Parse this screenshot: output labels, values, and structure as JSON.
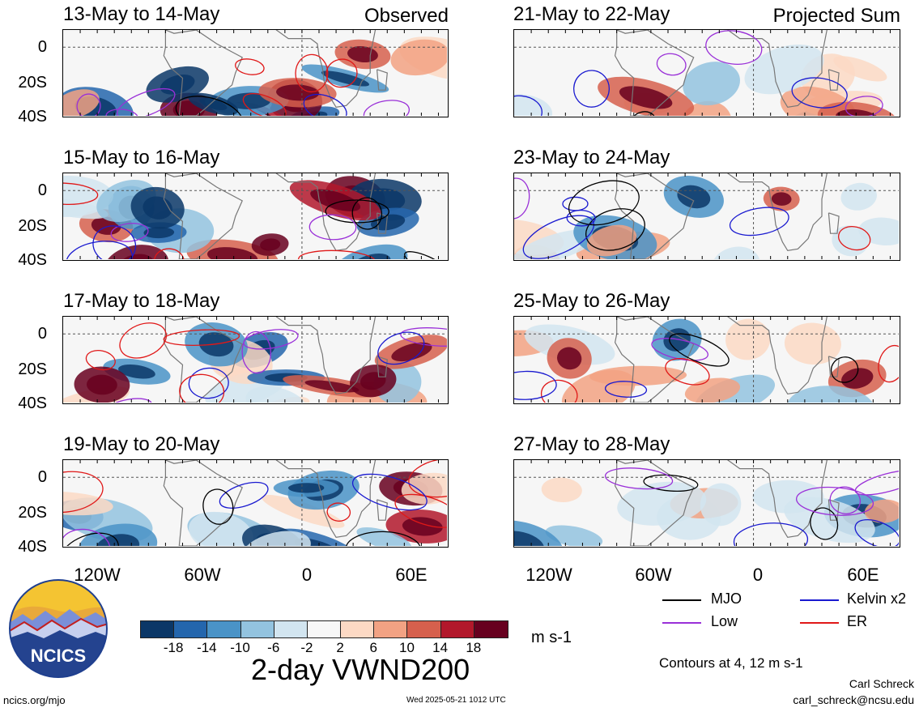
{
  "observed_label": "Observed",
  "projected_label": "Projected Sum",
  "panels_left": [
    {
      "title": "13-May to 14-May"
    },
    {
      "title": "15-May to 16-May"
    },
    {
      "title": "17-May to 18-May"
    },
    {
      "title": "19-May to 20-May"
    }
  ],
  "panels_right": [
    {
      "title": "21-May to 22-May"
    },
    {
      "title": "23-May to 24-May"
    },
    {
      "title": "25-May to 26-May"
    },
    {
      "title": "27-May to 28-May"
    }
  ],
  "lat_labels": [
    "0",
    "20S",
    "40S"
  ],
  "lon_labels": [
    "120W",
    "60W",
    "0",
    "60E"
  ],
  "legend": {
    "mjo": {
      "label": "MJO",
      "color": "#000000"
    },
    "kelvin": {
      "label": "Kelvin x2",
      "color": "#1a1ad0"
    },
    "low": {
      "label": "Low",
      "color": "#9a30d8"
    },
    "er": {
      "label": "ER",
      "color": "#e01818"
    },
    "contours_note": "Contours at 4, 12 m s-1"
  },
  "colorbar": {
    "colors": [
      "#0b3767",
      "#2466ad",
      "#4a93c7",
      "#93c3df",
      "#d2e5f0",
      "#f7f7f7",
      "#fcd9c4",
      "#f2a283",
      "#d6604d",
      "#b2182b",
      "#67001f"
    ],
    "ticks": [
      "-18",
      "-14",
      "-10",
      "-6",
      "-2",
      "2",
      "6",
      "10",
      "14",
      "18"
    ],
    "units": "m s-1"
  },
  "main_title": "2-day VWND200",
  "logo_text": "NCICS",
  "footer": {
    "url": "ncics.org/mjo",
    "timestamp": "Wed 2025-05-21 1012 UTC",
    "author": "Carl Schreck",
    "email": "carl_schreck@ncsu.edu"
  }
}
